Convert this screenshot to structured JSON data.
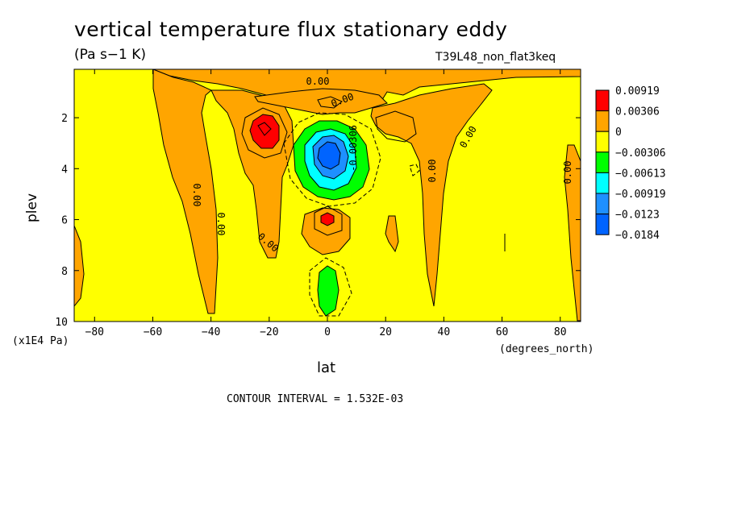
{
  "chart_data": {
    "type": "contour",
    "title": "vertical temperature flux stationary eddy",
    "units": "(Pa s−1 K)",
    "dataset": "T39L48_non_flat3keq",
    "xlabel": "lat",
    "ylabel": "plev",
    "x_units": "(degrees_north)",
    "y_units": "(x1E4 Pa)",
    "x_ticks": [
      "−80",
      "−60",
      "−40",
      "−20",
      "0",
      "20",
      "40",
      "60",
      "80"
    ],
    "y_ticks": [
      "2",
      "4",
      "6",
      "8",
      "10"
    ],
    "xlim": [
      -87,
      87
    ],
    "ylim": [
      10,
      0.1
    ],
    "contour_interval": "CONTOUR INTERVAL = 1.532E-03",
    "legend": [
      {
        "label": "0.00919",
        "color": "#ff0000"
      },
      {
        "label": "0.00306",
        "color": "#ffa500"
      },
      {
        "label": "0",
        "color": "#ffff00"
      },
      {
        "label": "−0.00306",
        "color": "#00ff00"
      },
      {
        "label": "−0.00613",
        "color": "#00ffff"
      },
      {
        "label": "−0.00919",
        "color": "#1e90ff"
      },
      {
        "label": "−0.0123",
        "color": "#0064ff"
      },
      {
        "label": "−0.0184",
        "color": ""
      }
    ],
    "contour_labels": [
      "0.00",
      "0.00",
      "-0.00306",
      "0.00",
      "0.00",
      "0.00",
      "0.00",
      "0.00",
      "0.00"
    ]
  }
}
